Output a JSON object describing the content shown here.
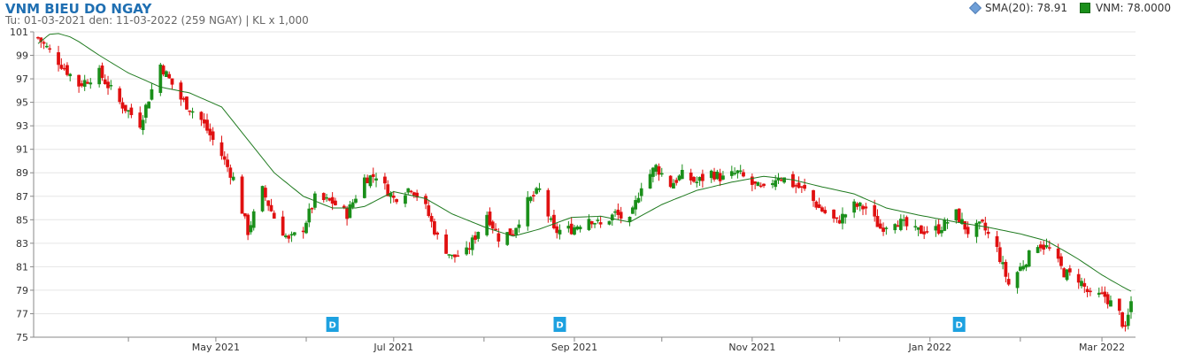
{
  "header": {
    "title": "VNM BIEU DO NGAY",
    "subtitle": "Tu: 01-03-2021 den: 11-03-2022 (259 NGAY) | KL x 1,000"
  },
  "legend": {
    "sma": "SMA(20): 78.91",
    "vnm": "VNM: 78.0000"
  },
  "colors": {
    "up": "#1a8f1a",
    "down": "#e01010",
    "sma": "#1f7a1f",
    "marker": "#1da1e0",
    "grid": "#e6e6e6"
  },
  "chart_data": {
    "type": "candlestick",
    "title": "VNM BIEU DO NGAY",
    "ylim": [
      75,
      101
    ],
    "y_ticks": [
      75,
      77,
      79,
      81,
      83,
      85,
      87,
      89,
      91,
      93,
      95,
      97,
      99,
      101
    ],
    "x_month_labels": [
      "May 2021",
      "Jul 2021",
      "Sep 2021",
      "Nov 2021",
      "Jan 2022",
      "Mar 2022"
    ],
    "dividend_markers": [
      {
        "label": "D",
        "date": "2021-06-10"
      },
      {
        "label": "D",
        "date": "2021-08-27"
      },
      {
        "label": "D",
        "date": "2022-01-11"
      }
    ],
    "series": [
      {
        "name": "VNM",
        "anchors": [
          [
            "2021-03-01",
            100.5
          ],
          [
            "2021-03-08",
            98.5
          ],
          [
            "2021-03-15",
            96.5
          ],
          [
            "2021-03-22",
            97.5
          ],
          [
            "2021-03-29",
            95.0
          ],
          [
            "2021-04-05",
            93.2
          ],
          [
            "2021-04-12",
            98.2
          ],
          [
            "2021-04-19",
            95.3
          ],
          [
            "2021-04-26",
            93.5
          ],
          [
            "2021-05-03",
            90.5
          ],
          [
            "2021-05-07",
            88.5
          ],
          [
            "2021-05-12",
            84.0
          ],
          [
            "2021-05-17",
            87.5
          ],
          [
            "2021-05-21",
            85.2
          ],
          [
            "2021-05-26",
            83.2
          ],
          [
            "2021-05-31",
            84.3
          ],
          [
            "2021-06-04",
            86.8
          ],
          [
            "2021-06-10",
            86.5
          ],
          [
            "2021-06-15",
            85.5
          ],
          [
            "2021-06-21",
            88.5
          ],
          [
            "2021-06-25",
            88.8
          ],
          [
            "2021-07-01",
            86.8
          ],
          [
            "2021-07-07",
            87.8
          ],
          [
            "2021-07-12",
            86.0
          ],
          [
            "2021-07-16",
            83.5
          ],
          [
            "2021-07-21",
            81.8
          ],
          [
            "2021-07-26",
            82.2
          ],
          [
            "2021-08-02",
            85.5
          ],
          [
            "2021-08-06",
            83.5
          ],
          [
            "2021-08-11",
            84.0
          ],
          [
            "2021-08-16",
            86.5
          ],
          [
            "2021-08-20",
            87.5
          ],
          [
            "2021-08-25",
            84.0
          ],
          [
            "2021-08-31",
            84.2
          ],
          [
            "2021-09-06",
            85.2
          ],
          [
            "2021-09-10",
            84.5
          ],
          [
            "2021-09-15",
            85.5
          ],
          [
            "2021-09-20",
            84.8
          ],
          [
            "2021-09-24",
            88.0
          ],
          [
            "2021-09-29",
            89.5
          ],
          [
            "2021-10-04",
            88.0
          ],
          [
            "2021-10-08",
            88.8
          ],
          [
            "2021-10-13",
            88.2
          ],
          [
            "2021-10-18",
            89.0
          ],
          [
            "2021-10-22",
            88.5
          ],
          [
            "2021-10-27",
            89.0
          ],
          [
            "2021-11-01",
            88.0
          ],
          [
            "2021-11-05",
            87.5
          ],
          [
            "2021-11-10",
            88.8
          ],
          [
            "2021-11-15",
            88.0
          ],
          [
            "2021-11-19",
            87.5
          ],
          [
            "2021-11-24",
            86.0
          ],
          [
            "2021-11-30",
            84.8
          ],
          [
            "2021-12-06",
            86.2
          ],
          [
            "2021-12-10",
            86.0
          ],
          [
            "2021-12-15",
            84.3
          ],
          [
            "2021-12-20",
            85.0
          ],
          [
            "2021-12-27",
            84.0
          ],
          [
            "2022-01-04",
            84.2
          ],
          [
            "2022-01-10",
            85.5
          ],
          [
            "2022-01-14",
            84.0
          ],
          [
            "2022-01-19",
            84.5
          ],
          [
            "2022-01-24",
            82.5
          ],
          [
            "2022-01-28",
            79.5
          ],
          [
            "2022-02-07",
            83.0
          ],
          [
            "2022-02-11",
            82.5
          ],
          [
            "2022-02-16",
            80.5
          ],
          [
            "2022-02-21",
            80.0
          ],
          [
            "2022-02-25",
            78.5
          ],
          [
            "2022-03-02",
            78.5
          ],
          [
            "2022-03-07",
            77.0
          ],
          [
            "2022-03-09",
            75.5
          ],
          [
            "2022-03-11",
            78.0
          ]
        ]
      },
      {
        "name": "SMA(20)",
        "anchors": [
          [
            "2021-03-01",
            100.0
          ],
          [
            "2021-03-06",
            101.0
          ],
          [
            "2021-03-13",
            100.5
          ],
          [
            "2021-03-22",
            99.0
          ],
          [
            "2021-04-01",
            97.5
          ],
          [
            "2021-04-12",
            96.3
          ],
          [
            "2021-04-22",
            95.8
          ],
          [
            "2021-05-03",
            94.6
          ],
          [
            "2021-05-12",
            91.8
          ],
          [
            "2021-05-21",
            89.0
          ],
          [
            "2021-05-31",
            87.0
          ],
          [
            "2021-06-10",
            86.0
          ],
          [
            "2021-06-20",
            86.0
          ],
          [
            "2021-07-01",
            87.4
          ],
          [
            "2021-07-12",
            86.8
          ],
          [
            "2021-07-21",
            85.5
          ],
          [
            "2021-08-02",
            84.3
          ],
          [
            "2021-08-11",
            83.6
          ],
          [
            "2021-08-20",
            84.2
          ],
          [
            "2021-08-31",
            85.2
          ],
          [
            "2021-09-10",
            85.3
          ],
          [
            "2021-09-20",
            84.8
          ],
          [
            "2021-10-01",
            86.3
          ],
          [
            "2021-10-13",
            87.5
          ],
          [
            "2021-10-25",
            88.2
          ],
          [
            "2021-11-05",
            88.7
          ],
          [
            "2021-11-15",
            88.4
          ],
          [
            "2021-11-25",
            87.8
          ],
          [
            "2021-12-06",
            87.2
          ],
          [
            "2021-12-17",
            86.0
          ],
          [
            "2021-12-28",
            85.4
          ],
          [
            "2022-01-10",
            84.8
          ],
          [
            "2022-01-20",
            84.4
          ],
          [
            "2022-02-01",
            83.8
          ],
          [
            "2022-02-10",
            83.2
          ],
          [
            "2022-02-20",
            81.8
          ],
          [
            "2022-03-01",
            80.3
          ],
          [
            "2022-03-08",
            79.3
          ],
          [
            "2022-03-11",
            78.91
          ]
        ]
      }
    ]
  }
}
